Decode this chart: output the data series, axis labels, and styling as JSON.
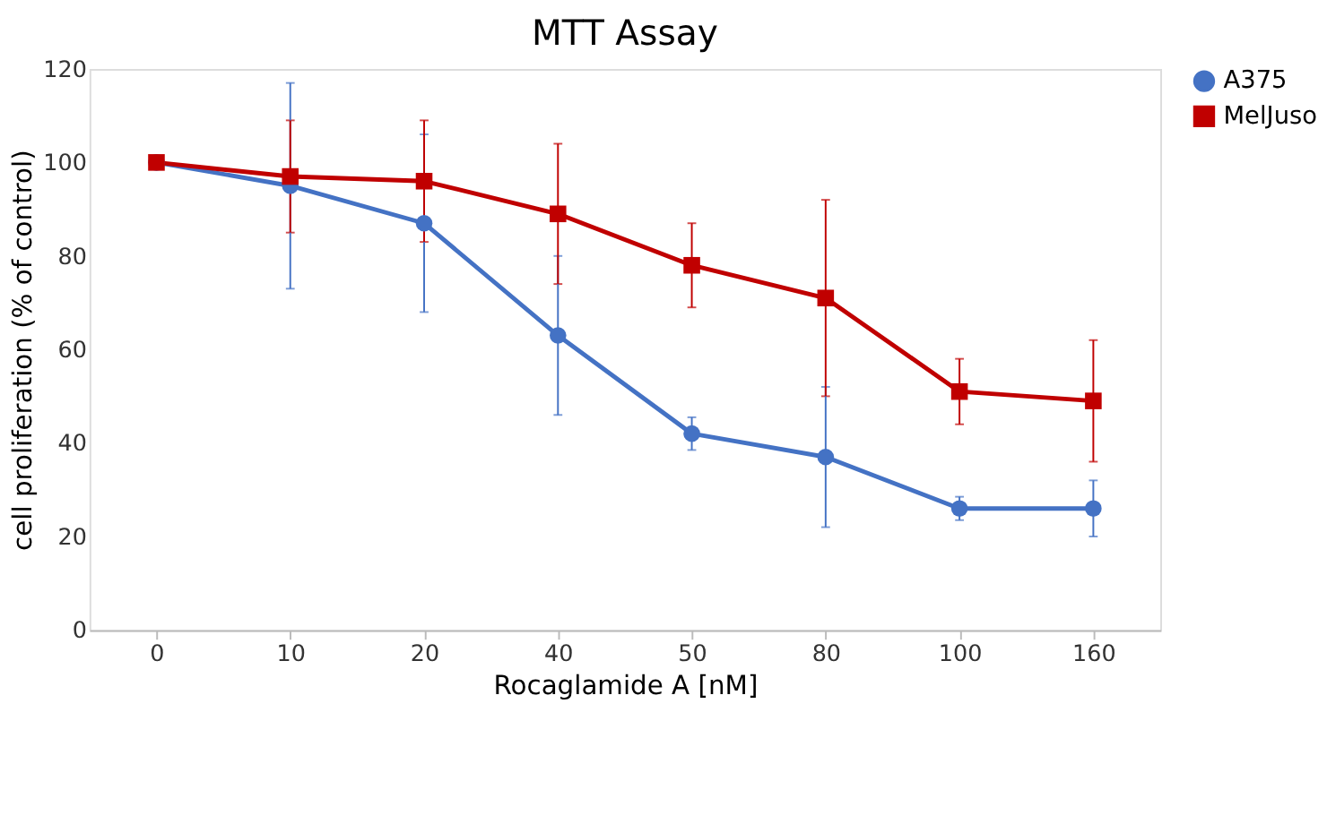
{
  "chart_data": {
    "type": "line",
    "title": "MTT Assay",
    "xlabel": "Rocaglamide A [nM]",
    "ylabel": "cell proliferation (% of control)",
    "categories": [
      "0",
      "10",
      "20",
      "40",
      "50",
      "80",
      "100",
      "160"
    ],
    "series": [
      {
        "name": "A375",
        "color": "#4472c4",
        "marker": "circle",
        "values": [
          100,
          95,
          87,
          63,
          42,
          37,
          26,
          26
        ],
        "errors": [
          null,
          22,
          19,
          17,
          3.5,
          15,
          2.5,
          6
        ]
      },
      {
        "name": "MelJuso",
        "color": "#c00000",
        "marker": "square",
        "values": [
          100,
          97,
          96,
          89,
          78,
          71,
          51,
          49
        ],
        "errors": [
          null,
          12,
          13,
          15,
          9,
          21,
          7,
          13
        ]
      }
    ],
    "ylim": [
      0,
      120
    ],
    "yticks": [
      0,
      20,
      40,
      60,
      80,
      100,
      120
    ],
    "grid": false,
    "legend": "top right",
    "line_style": "solid"
  }
}
